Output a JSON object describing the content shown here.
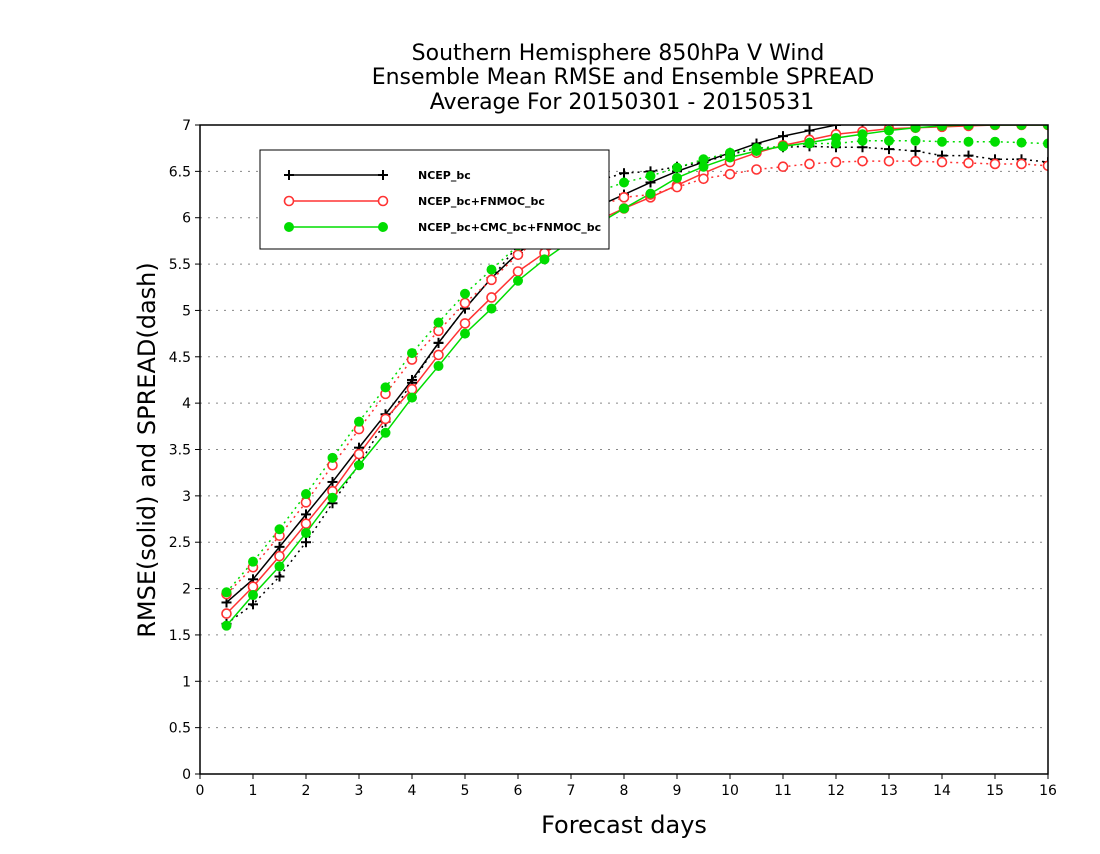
{
  "chart_data": {
    "type": "line",
    "title": [
      "Southern Hemisphere 850hPa V Wind",
      "Ensemble Mean RMSE and Ensemble SPREAD",
      "Average For 20150301 - 20150531"
    ],
    "xlabel": "Forecast days",
    "ylabel": "RMSE(solid) and SPREAD(dash)",
    "xlim": [
      0,
      16
    ],
    "ylim": [
      0,
      7
    ],
    "xticks": [
      0,
      1,
      2,
      3,
      4,
      5,
      6,
      7,
      8,
      9,
      10,
      11,
      12,
      13,
      14,
      15,
      16
    ],
    "yticks": [
      0,
      0.5,
      1,
      1.5,
      2,
      2.5,
      3,
      3.5,
      4,
      4.5,
      5,
      5.5,
      6,
      6.5,
      7
    ],
    "grid": "horizontal dotted",
    "legend_position": "top-left",
    "x": [
      0.5,
      1,
      1.5,
      2,
      2.5,
      3,
      3.5,
      4,
      4.5,
      5,
      5.5,
      6,
      6.5,
      7,
      7.5,
      8,
      8.5,
      9,
      9.5,
      10,
      10.5,
      11,
      11.5,
      12,
      12.5,
      13,
      13.5,
      14,
      14.5,
      15,
      15.5,
      16
    ],
    "series": [
      {
        "name": "NCEP_bc",
        "metric": "RMSE",
        "color": "#000000",
        "marker": "plus",
        "dash": false,
        "values": [
          1.85,
          2.1,
          2.45,
          2.8,
          3.15,
          3.52,
          3.88,
          4.25,
          4.65,
          5.02,
          5.35,
          5.62,
          5.82,
          6.0,
          6.12,
          6.25,
          6.38,
          6.5,
          6.6,
          6.7,
          6.8,
          6.88,
          6.94,
          7.0,
          7.03,
          7.05,
          7.07,
          7.08,
          7.09,
          7.1,
          7.1,
          7.1
        ]
      },
      {
        "name": "NCEP_bc",
        "metric": "SPREAD",
        "color": "#000000",
        "marker": "plus",
        "dash": true,
        "values": [
          1.62,
          1.83,
          2.13,
          2.5,
          2.92,
          3.34,
          3.8,
          4.22,
          4.65,
          5.02,
          5.35,
          5.7,
          6.0,
          6.22,
          6.4,
          6.48,
          6.5,
          6.55,
          6.6,
          6.68,
          6.75,
          6.76,
          6.77,
          6.76,
          6.76,
          6.74,
          6.72,
          6.67,
          6.67,
          6.63,
          6.63,
          6.6
        ]
      },
      {
        "name": "NCEP_bc+FNMOC_bc",
        "metric": "RMSE",
        "color": "#ff3333",
        "marker": "circle-open",
        "dash": false,
        "values": [
          1.73,
          2.02,
          2.35,
          2.7,
          3.05,
          3.45,
          3.83,
          4.15,
          4.52,
          4.86,
          5.14,
          5.42,
          5.62,
          5.8,
          5.97,
          6.1,
          6.22,
          6.35,
          6.48,
          6.6,
          6.7,
          6.78,
          6.84,
          6.9,
          6.93,
          6.96,
          6.97,
          6.98,
          6.99,
          7.0,
          7.0,
          7.0
        ]
      },
      {
        "name": "NCEP_bc+FNMOC_bc",
        "metric": "SPREAD",
        "color": "#ff3333",
        "marker": "circle-open",
        "dash": true,
        "values": [
          1.94,
          2.23,
          2.57,
          2.93,
          3.33,
          3.72,
          4.1,
          4.47,
          4.78,
          5.08,
          5.33,
          5.6,
          5.82,
          6.0,
          6.12,
          6.22,
          6.25,
          6.33,
          6.42,
          6.47,
          6.52,
          6.55,
          6.58,
          6.6,
          6.61,
          6.61,
          6.61,
          6.6,
          6.59,
          6.58,
          6.58,
          6.56
        ]
      },
      {
        "name": "NCEP_bc+CMC_bc+FNMOC_bc",
        "metric": "RMSE",
        "color": "#00dd00",
        "marker": "circle-filled",
        "dash": false,
        "values": [
          1.6,
          1.93,
          2.24,
          2.6,
          2.98,
          3.33,
          3.68,
          4.06,
          4.4,
          4.75,
          5.02,
          5.32,
          5.55,
          5.75,
          5.93,
          6.1,
          6.26,
          6.43,
          6.55,
          6.65,
          6.72,
          6.77,
          6.81,
          6.86,
          6.9,
          6.94,
          6.97,
          6.99,
          7.0,
          7.0,
          7.0,
          7.0
        ]
      },
      {
        "name": "NCEP_bc+CMC_bc+FNMOC_bc",
        "metric": "SPREAD",
        "color": "#00dd00",
        "marker": "circle-filled",
        "dash": true,
        "values": [
          1.96,
          2.29,
          2.64,
          3.02,
          3.41,
          3.8,
          4.17,
          4.54,
          4.87,
          5.18,
          5.44,
          5.7,
          5.93,
          6.12,
          6.28,
          6.38,
          6.45,
          6.54,
          6.63,
          6.7,
          6.75,
          6.77,
          6.8,
          6.8,
          6.83,
          6.83,
          6.83,
          6.82,
          6.82,
          6.82,
          6.81,
          6.8
        ]
      }
    ],
    "legend": [
      {
        "label": "NCEP_bc",
        "color": "#000000",
        "marker": "plus"
      },
      {
        "label": "NCEP_bc+FNMOC_bc",
        "color": "#ff3333",
        "marker": "circle-open"
      },
      {
        "label": "NCEP_bc+CMC_bc+FNMOC_bc",
        "color": "#00dd00",
        "marker": "circle-filled"
      }
    ]
  }
}
